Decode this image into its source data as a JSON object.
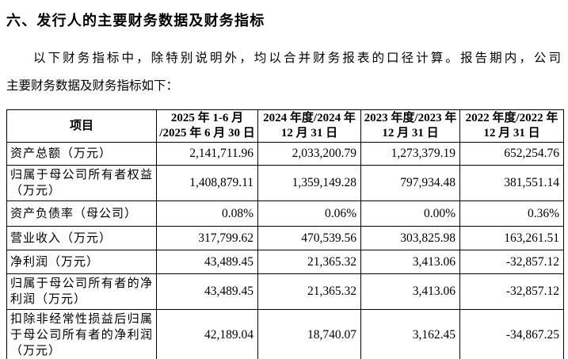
{
  "page": {
    "section_heading": "六、发行人的主要财务数据及财务指标",
    "intro_line1": "以下财务指标中，除特别说明外，均以合并财务报表的口径计算。报告期内，公司",
    "intro_line2": "主要财务数据及财务指标如下："
  },
  "table": {
    "headers": [
      "项目",
      "2025 年 1-6 月\n/2025 年 6 月 30 日",
      "2024 年度/2024 年\n12 月 31 日",
      "2023 年度/2023 年\n12 月 31 日",
      "2022 年度/2022 年\n12 月 31 日"
    ],
    "rows": [
      {
        "label": "资产总额（万元）",
        "values": [
          "2,141,711.96",
          "2,033,200.79",
          "1,273,379.19",
          "652,254.76"
        ]
      },
      {
        "label": "归属于母公司所有者权益（万元）",
        "values": [
          "1,408,879.11",
          "1,359,149.28",
          "797,934.48",
          "381,551.14"
        ]
      },
      {
        "label": "资产负债率（母公司）",
        "values": [
          "0.08%",
          "0.06%",
          "0.00%",
          "0.36%"
        ]
      },
      {
        "label": "营业收入（万元）",
        "values": [
          "317,799.62",
          "470,539.56",
          "303,825.98",
          "163,261.51"
        ]
      },
      {
        "label": "净利润（万元）",
        "values": [
          "43,489.45",
          "21,365.32",
          "3,413.06",
          "-32,857.12"
        ]
      },
      {
        "label": "归属于母公司所有者的净利润（万元）",
        "values": [
          "43,489.45",
          "21,365.32",
          "3,413.06",
          "-32,857.12"
        ]
      },
      {
        "label": "扣除非经常性损益后归属于母公司所有者的净利润（万元）",
        "values": [
          "42,189.04",
          "18,740.07",
          "3,162.45",
          "-34,867.25"
        ]
      }
    ]
  }
}
